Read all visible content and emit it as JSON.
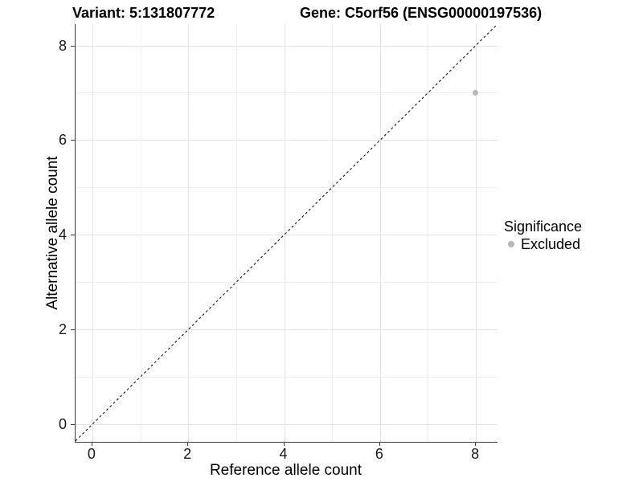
{
  "chart_data": {
    "type": "scatter",
    "title_left": "Variant: 5:131807772",
    "title_right": "Gene: C5orf56 (ENSG00000197536)",
    "xlabel": "Reference allele count",
    "ylabel": "Alternative allele count",
    "xlim": [
      -0.35,
      8.45
    ],
    "ylim": [
      -0.37,
      8.45
    ],
    "x_ticks": [
      0,
      2,
      4,
      6,
      8
    ],
    "y_ticks": [
      0,
      2,
      4,
      6,
      8
    ],
    "grid_step": 1,
    "grid_on": true,
    "points": [
      {
        "x": 8,
        "y": 7,
        "significance": "Excluded"
      }
    ],
    "reference_line": {
      "type": "identity y=x",
      "style": "dashed",
      "color": "#000000"
    },
    "legend": {
      "title": "Significance",
      "position": "right",
      "entries": [
        {
          "label": "Excluded",
          "color": "#b8b8b8"
        }
      ]
    },
    "colors": {
      "point": "#b8b8b8",
      "grid_major": "#e3e3e3",
      "grid_minor": "#eeeeee",
      "axis": "#3c3c3c",
      "text": "#000000"
    }
  }
}
